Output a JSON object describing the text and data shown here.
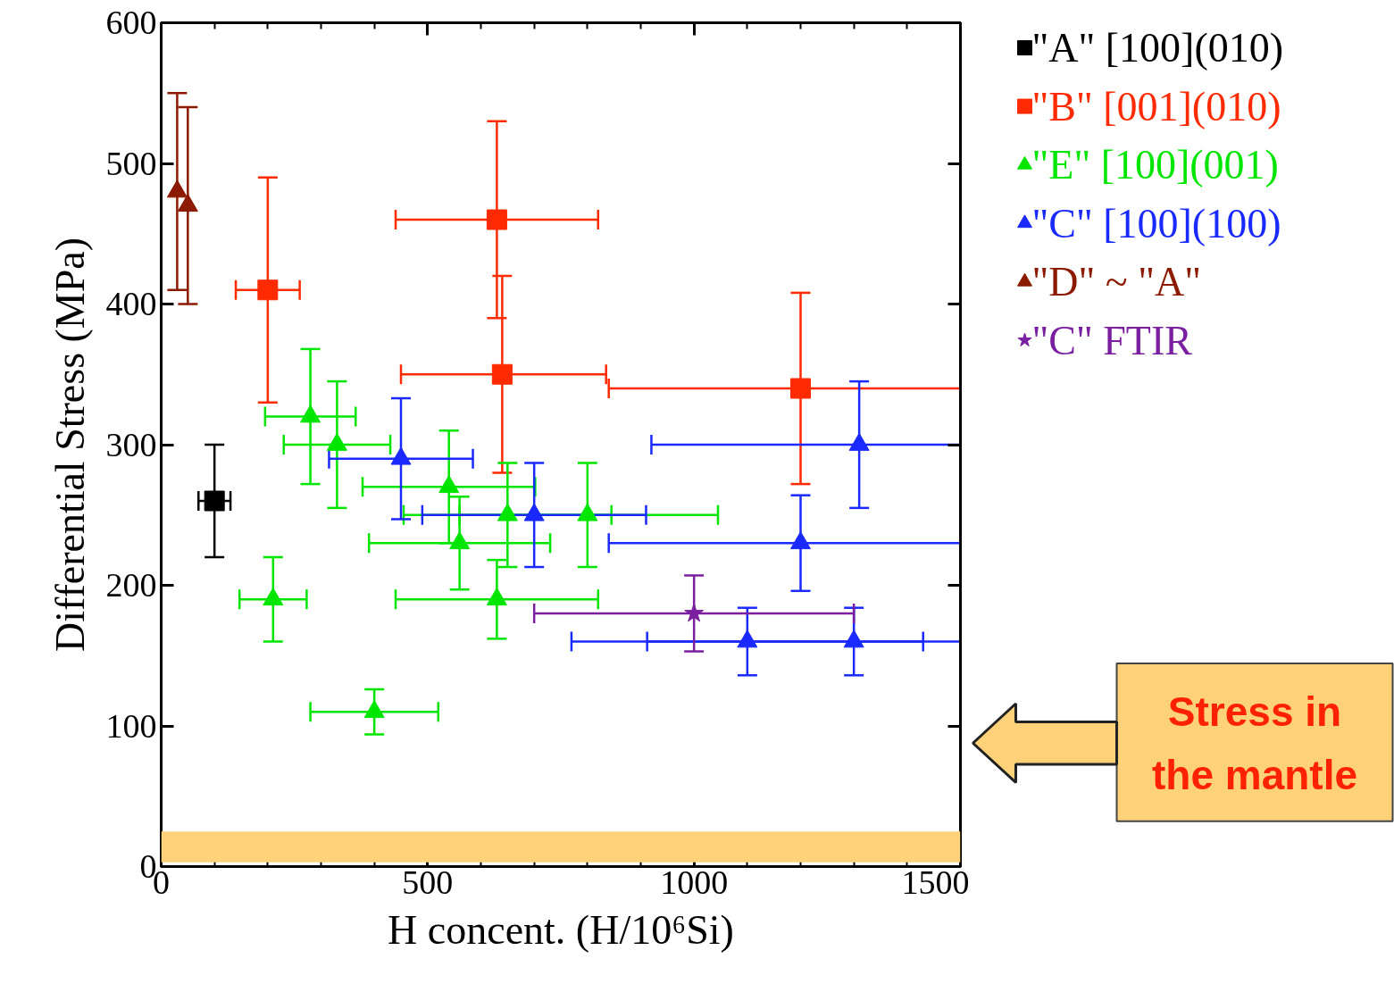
{
  "chart_data": {
    "type": "scatter",
    "xlabel": "H concent. (H/10⁶Si)",
    "ylabel": "Differential Stress (MPa)",
    "xlim": [
      0,
      1500
    ],
    "ylim": [
      0,
      600
    ],
    "xticks": [
      0,
      {
        "value": 100,
        "label": null
      },
      {
        "value": 200,
        "label": null
      },
      {
        "value": 300,
        "label": null
      },
      {
        "value": 400,
        "label": null
      },
      500,
      {
        "value": 600,
        "label": null
      },
      {
        "value": 700,
        "label": null
      },
      {
        "value": 800,
        "label": null
      },
      {
        "value": 900,
        "label": null
      },
      1000,
      {
        "value": 1100,
        "label": null
      },
      {
        "value": 1200,
        "label": null
      },
      {
        "value": 1300,
        "label": null
      },
      {
        "value": 1400,
        "label": null
      },
      1500
    ],
    "yticks": [
      0,
      100,
      200,
      300,
      400,
      500,
      600
    ],
    "grid": false,
    "legend": "right",
    "series": [
      {
        "name": "\"A\" [100](010)",
        "color": "#000000",
        "marker": "square",
        "x": [
          100
        ],
        "values": [
          260
        ],
        "xerrors": [
          30
        ],
        "errors": [
          40
        ]
      },
      {
        "name": "\"B\" [001](010)",
        "color": "#ff2a00",
        "marker": "square",
        "x": [
          200,
          630,
          640,
          1200
        ],
        "values": [
          410,
          460,
          350,
          340
        ],
        "xerrors": [
          60,
          190,
          [
            450,
            835
          ],
          [
            840,
            1500
          ]
        ],
        "errors": [
          80,
          70,
          70,
          [
            272,
            408
          ]
        ]
      },
      {
        "name": "\"E\" [100](001)",
        "color": "#00e600",
        "marker": "triangle",
        "x": [
          280,
          330,
          210,
          400,
          540,
          560,
          630,
          650,
          800
        ],
        "values": [
          320,
          300,
          190,
          110,
          270,
          230,
          190,
          250,
          250
        ],
        "xerrors": [
          85,
          100,
          63,
          120,
          [
            378,
            702
          ],
          170,
          190,
          [
            455,
            845
          ],
          [
            560,
            1045
          ]
        ],
        "errors": [
          48,
          45,
          30,
          16,
          40,
          33,
          28,
          37,
          37
        ]
      },
      {
        "name": "\"C\" [100](100)",
        "color": "#1a2aff",
        "marker": "triangle",
        "x": [
          450,
          700,
          1200,
          1100,
          1300,
          1310
        ],
        "values": [
          290,
          250,
          230,
          160,
          160,
          300
        ],
        "xerrors": [
          135,
          210,
          [
            840,
            1500
          ],
          [
            770,
            1430
          ],
          [
            912,
            1500
          ],
          [
            920,
            1500
          ]
        ],
        "errors": [
          43,
          37,
          34,
          24,
          24,
          45
        ]
      },
      {
        "name": "\"D\" ~ \"A\"",
        "color": "#8b1a00",
        "marker": "triangle",
        "x": [
          30,
          50
        ],
        "values": [
          480,
          470
        ],
        "errors": [
          [
            410,
            550
          ],
          [
            400,
            540
          ]
        ]
      },
      {
        "name": "\"C\" FTIR",
        "color": "#7a1fa0",
        "marker": "star",
        "x": [
          1000
        ],
        "values": [
          180
        ],
        "xerrors": [
          300
        ],
        "errors": [
          27
        ]
      }
    ],
    "bands": [
      {
        "axis": "y",
        "from": 3,
        "to": 25,
        "label": "Stress in the mantle",
        "color": "#ffd27a"
      }
    ]
  }
}
